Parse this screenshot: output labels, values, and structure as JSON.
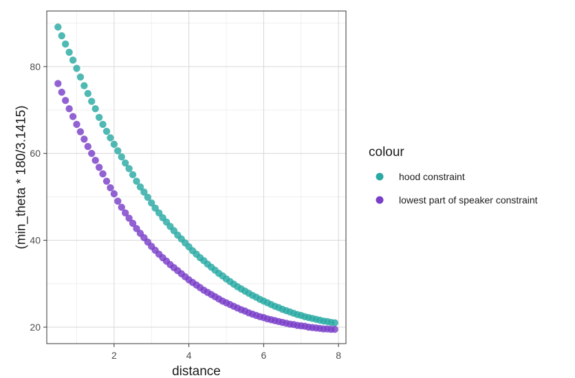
{
  "chart_data": {
    "type": "scatter",
    "xlabel": "distance",
    "ylabel": "(min_theta * 180/3.1415)",
    "xlim": [
      0.2,
      8.2
    ],
    "ylim": [
      16.2,
      92.8
    ],
    "x_ticks": [
      2,
      4,
      6,
      8
    ],
    "y_ticks": [
      20,
      40,
      60,
      80
    ],
    "x_tick_labels": [
      "2",
      "4",
      "6",
      "8"
    ],
    "y_tick_labels": [
      "20",
      "40",
      "60",
      "80"
    ],
    "grid": true,
    "legend_title": "colour",
    "legend_position": "right",
    "series": [
      {
        "name": "hood constraint",
        "color": "#2aa9a3",
        "x": [
          0.5,
          0.6,
          0.7,
          0.8,
          0.9,
          1.0,
          1.1,
          1.2,
          1.3,
          1.4,
          1.5,
          1.6,
          1.7,
          1.8,
          1.9,
          2.0,
          2.1,
          2.2,
          2.3,
          2.4,
          2.5,
          2.6,
          2.7,
          2.8,
          2.9,
          3.0,
          3.1,
          3.2,
          3.3,
          3.4,
          3.5,
          3.6,
          3.7,
          3.8,
          3.9,
          4.0,
          4.1,
          4.2,
          4.3,
          4.4,
          4.5,
          4.6,
          4.7,
          4.8,
          4.9,
          5.0,
          5.1,
          5.2,
          5.3,
          5.4,
          5.5,
          5.6,
          5.7,
          5.8,
          5.9,
          6.0,
          6.1,
          6.2,
          6.3,
          6.4,
          6.5,
          6.6,
          6.7,
          6.8,
          6.9,
          7.0,
          7.1,
          7.2,
          7.3,
          7.4,
          7.5,
          7.6,
          7.7,
          7.8,
          7.9
        ],
        "y": [
          89.1,
          87.1,
          85.2,
          83.3,
          81.5,
          79.6,
          77.6,
          75.6,
          73.8,
          72.0,
          70.3,
          68.3,
          66.7,
          65.1,
          63.6,
          62.1,
          60.6,
          59.2,
          57.8,
          56.5,
          55.1,
          53.6,
          52.3,
          51.1,
          49.9,
          48.6,
          47.4,
          46.3,
          45.2,
          44.2,
          43.2,
          42.2,
          41.2,
          40.3,
          39.4,
          38.5,
          37.6,
          36.8,
          36.0,
          35.3,
          34.5,
          33.8,
          33.1,
          32.4,
          31.8,
          31.1,
          30.5,
          29.9,
          29.3,
          28.8,
          28.3,
          27.8,
          27.3,
          26.9,
          26.4,
          26.0,
          25.6,
          25.2,
          24.8,
          24.5,
          24.1,
          23.8,
          23.5,
          23.2,
          22.9,
          22.7,
          22.4,
          22.2,
          22.0,
          21.8,
          21.6,
          21.4,
          21.3,
          21.1,
          21.0
        ]
      },
      {
        "name": "lowest part of speaker constraint",
        "color": "#7a3fc9",
        "x": [
          0.5,
          0.6,
          0.7,
          0.8,
          0.9,
          1.0,
          1.1,
          1.2,
          1.3,
          1.4,
          1.5,
          1.6,
          1.7,
          1.8,
          1.9,
          2.0,
          2.1,
          2.2,
          2.3,
          2.4,
          2.5,
          2.6,
          2.7,
          2.8,
          2.9,
          3.0,
          3.1,
          3.2,
          3.3,
          3.4,
          3.5,
          3.6,
          3.7,
          3.8,
          3.9,
          4.0,
          4.1,
          4.2,
          4.3,
          4.4,
          4.5,
          4.6,
          4.7,
          4.8,
          4.9,
          5.0,
          5.1,
          5.2,
          5.3,
          5.4,
          5.5,
          5.6,
          5.7,
          5.8,
          5.9,
          6.0,
          6.1,
          6.2,
          6.3,
          6.4,
          6.5,
          6.6,
          6.7,
          6.8,
          6.9,
          7.0,
          7.1,
          7.2,
          7.3,
          7.4,
          7.5,
          7.6,
          7.7,
          7.8,
          7.9
        ],
        "y": [
          76.1,
          74.1,
          72.2,
          70.3,
          68.5,
          66.7,
          65.0,
          63.3,
          61.6,
          60.0,
          58.4,
          56.8,
          55.3,
          53.6,
          52.1,
          50.7,
          49.0,
          47.6,
          46.3,
          45.1,
          43.9,
          42.7,
          41.6,
          40.6,
          39.6,
          38.6,
          37.7,
          36.8,
          36.0,
          35.2,
          34.4,
          33.7,
          33.0,
          32.3,
          31.6,
          30.9,
          30.3,
          29.7,
          29.1,
          28.5,
          28.0,
          27.5,
          27.0,
          26.5,
          26.0,
          25.6,
          25.2,
          24.8,
          24.4,
          24.0,
          23.7,
          23.3,
          23.0,
          22.7,
          22.4,
          22.2,
          21.9,
          21.7,
          21.5,
          21.3,
          21.1,
          20.9,
          20.7,
          20.6,
          20.4,
          20.3,
          20.2,
          20.0,
          19.9,
          19.8,
          19.7,
          19.6,
          19.6,
          19.5,
          19.5
        ]
      }
    ]
  }
}
